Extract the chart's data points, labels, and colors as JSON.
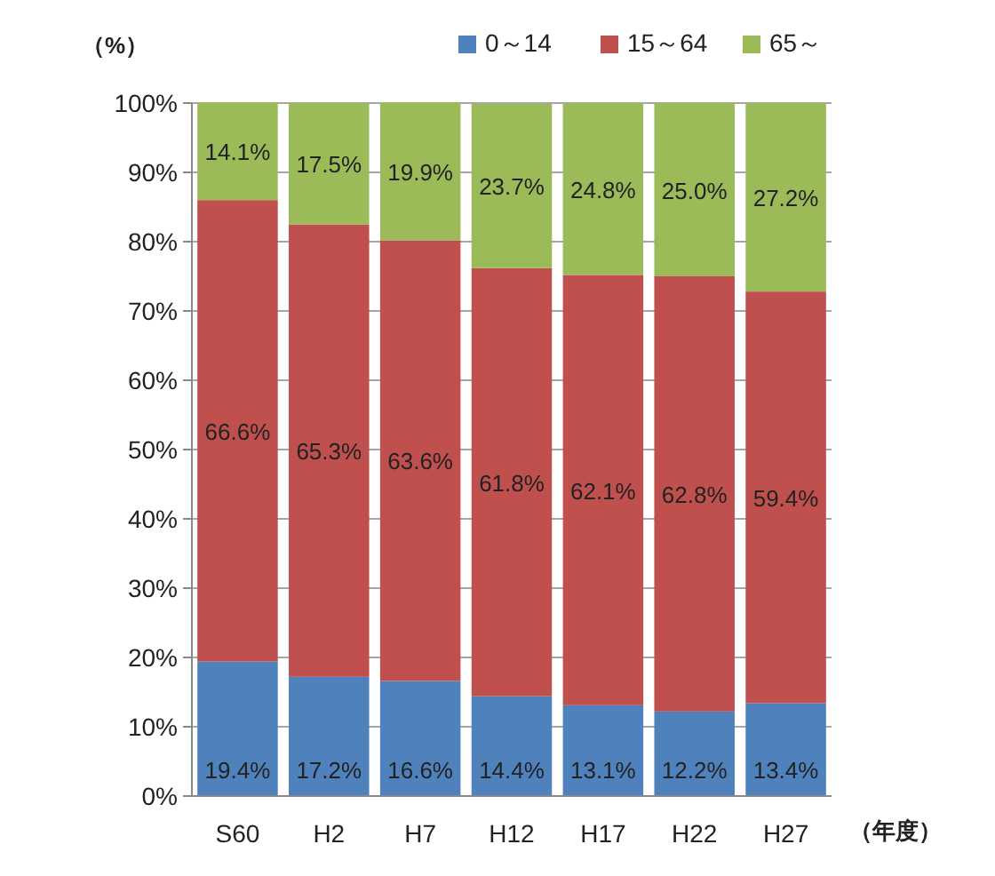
{
  "chart_data": {
    "type": "bar",
    "stacked": true,
    "xlabel": "（年度）",
    "ylabel": "（%）",
    "categories": [
      "S60",
      "H2",
      "H7",
      "H12",
      "H17",
      "H22",
      "H27"
    ],
    "series": [
      {
        "name": "0～14",
        "color": "#4f81bd",
        "values": [
          19.4,
          17.2,
          16.6,
          14.4,
          13.1,
          12.2,
          13.4
        ],
        "value_labels": [
          "19.4%",
          "17.2%",
          "16.6%",
          "14.4%",
          "13.1%",
          "12.2%",
          "13.4%"
        ]
      },
      {
        "name": "15～64",
        "color": "#c0504d",
        "values": [
          66.6,
          65.3,
          63.6,
          61.8,
          62.1,
          62.8,
          59.4
        ],
        "value_labels": [
          "66.6%",
          "65.3%",
          "63.6%",
          "61.8%",
          "62.1%",
          "62.8%",
          "59.4%"
        ]
      },
      {
        "name": "65～",
        "color": "#9bbb59",
        "values": [
          14.1,
          17.5,
          19.9,
          23.7,
          24.8,
          25.0,
          27.2
        ],
        "value_labels": [
          "14.1%",
          "17.5%",
          "19.9%",
          "23.7%",
          "24.8%",
          "25.0%",
          "27.2%"
        ]
      }
    ],
    "ylim": [
      0,
      100
    ],
    "yticks": [
      {
        "value": 0,
        "label": "0%"
      },
      {
        "value": 10,
        "label": "10%"
      },
      {
        "value": 20,
        "label": "20%"
      },
      {
        "value": 30,
        "label": "30%"
      },
      {
        "value": 40,
        "label": "40%"
      },
      {
        "value": 50,
        "label": "50%"
      },
      {
        "value": 60,
        "label": "60%"
      },
      {
        "value": 70,
        "label": "70%"
      },
      {
        "value": 80,
        "label": "80%"
      },
      {
        "value": 90,
        "label": "90%"
      },
      {
        "value": 100,
        "label": "100%"
      }
    ],
    "grid": "y",
    "legend": "top"
  }
}
